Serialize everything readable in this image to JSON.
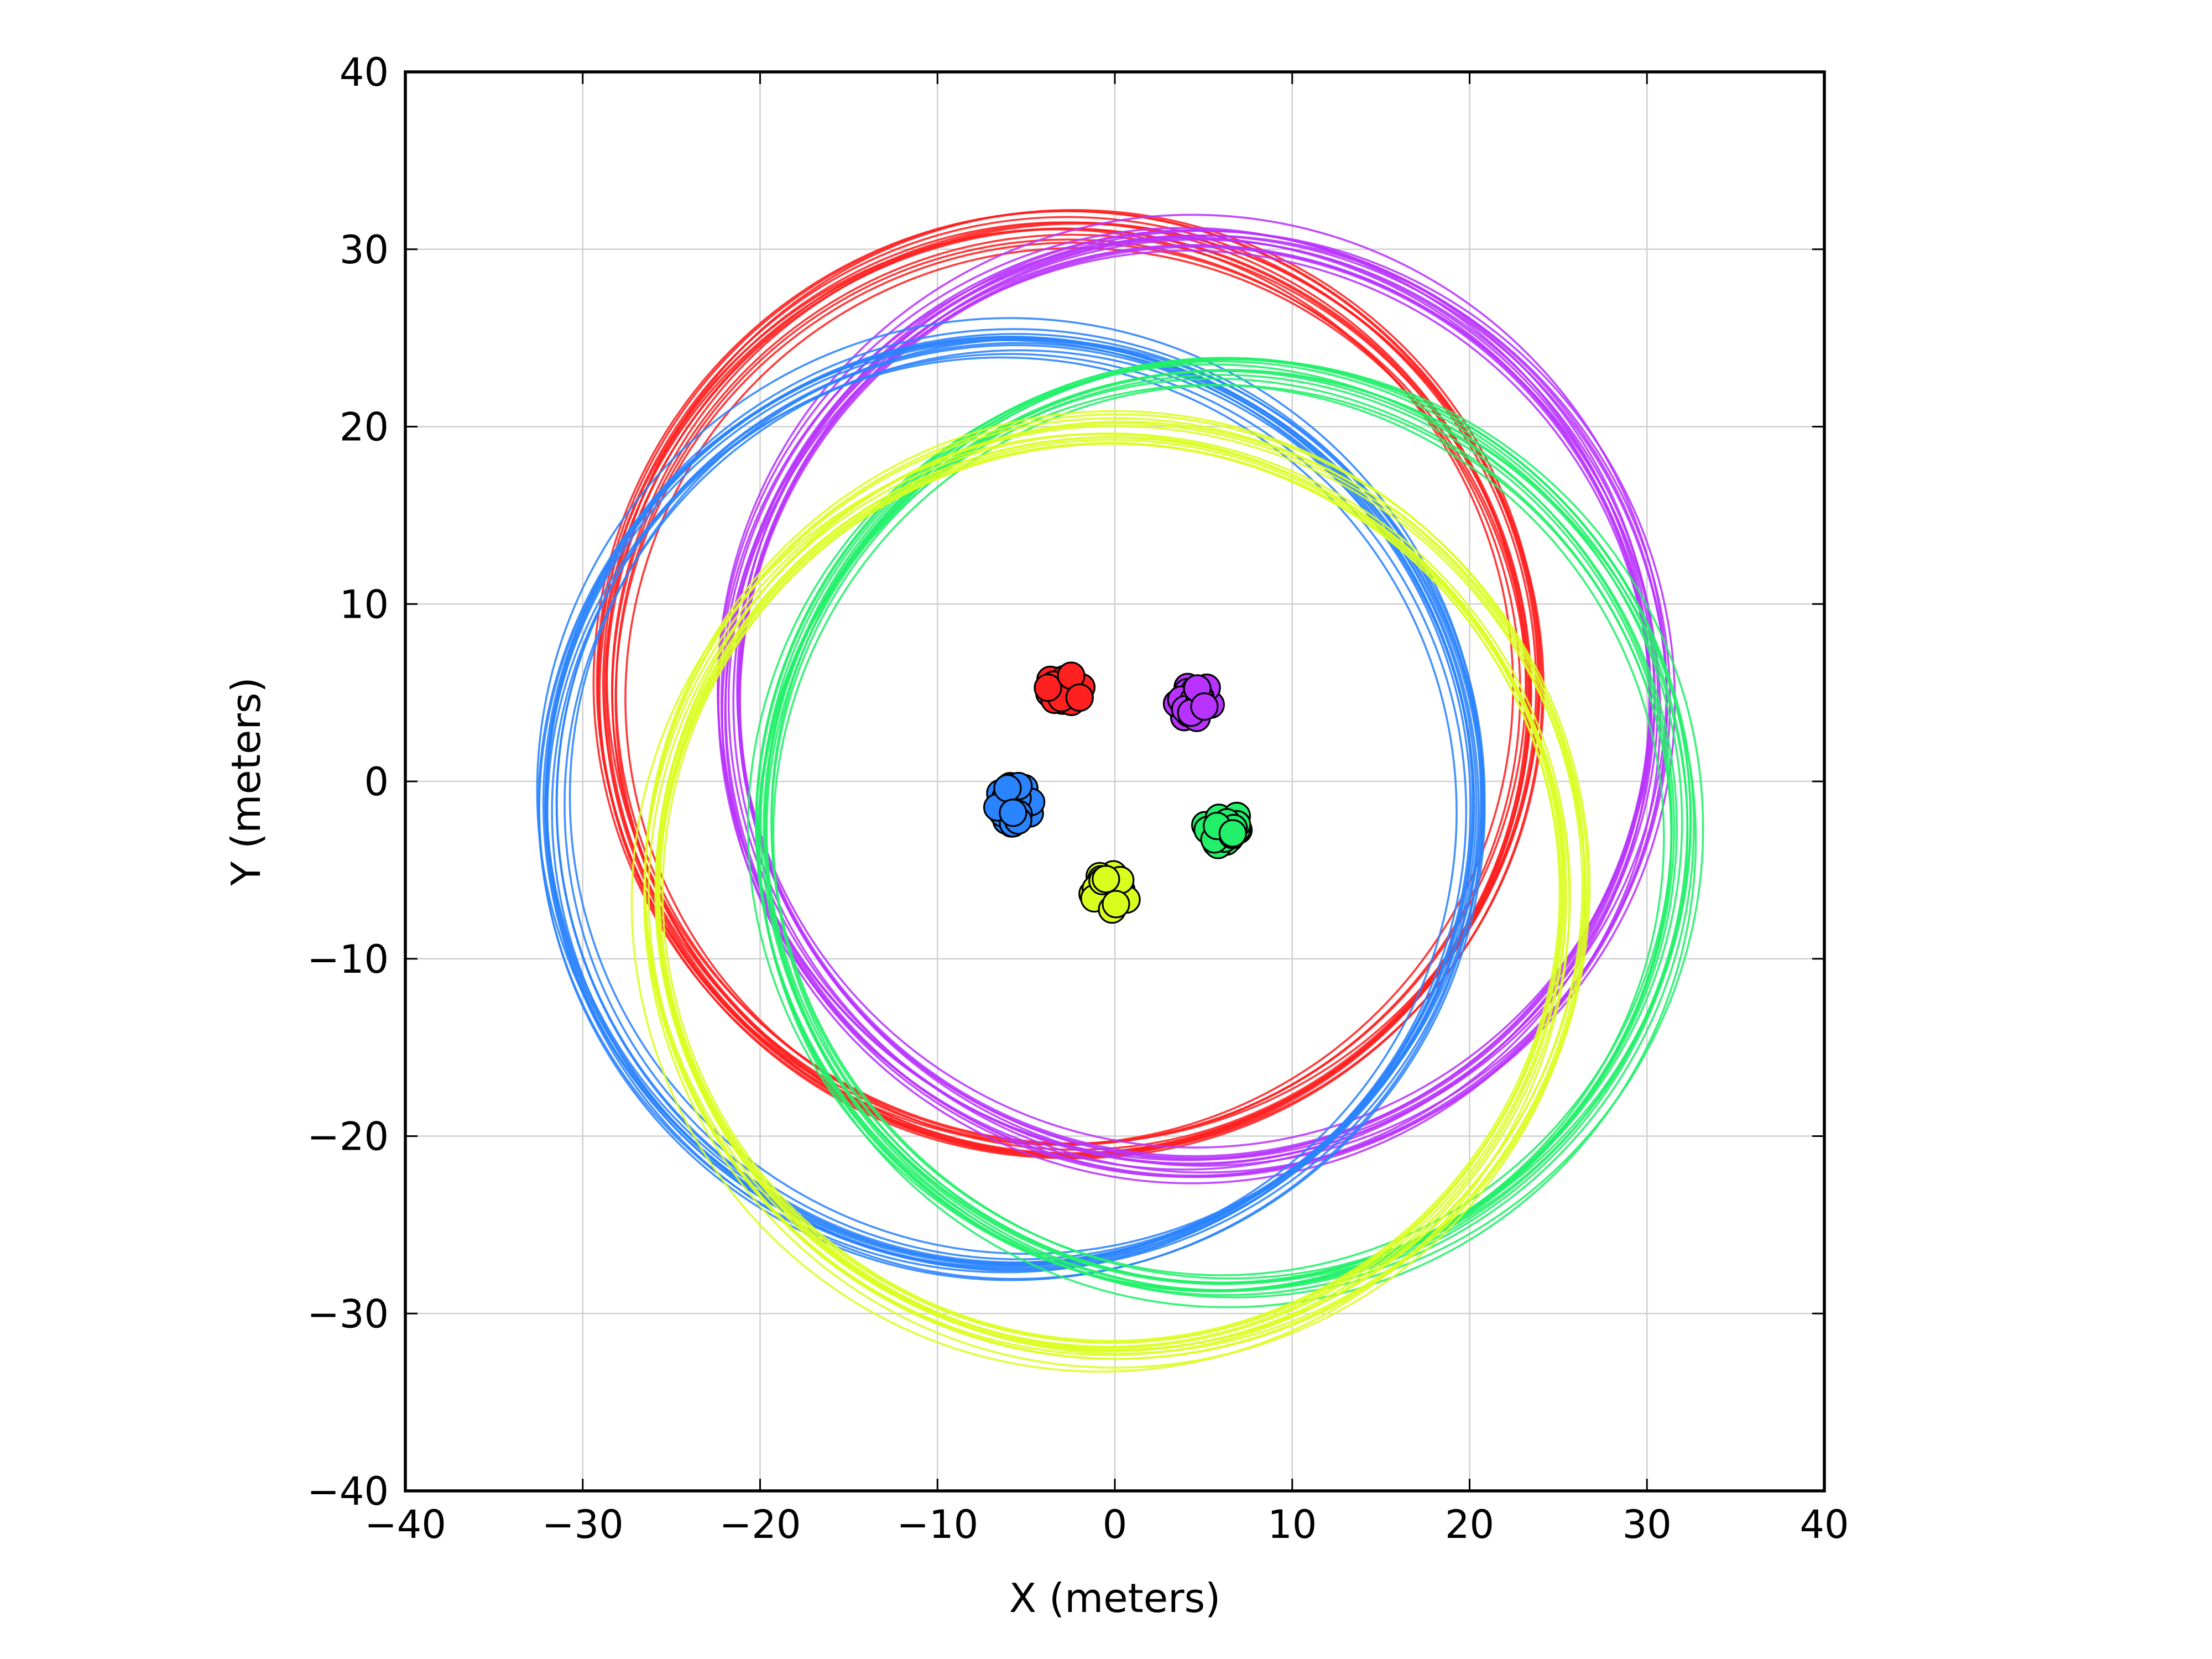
{
  "chart_data": {
    "type": "scatter",
    "title": "",
    "xlabel": "X (meters)",
    "ylabel": "Y (meters)",
    "xlim": [
      -40,
      40
    ],
    "ylim": [
      -40,
      40
    ],
    "xticks": [
      -40,
      -30,
      -20,
      -10,
      0,
      10,
      20,
      30,
      40
    ],
    "yticks": [
      -40,
      -30,
      -20,
      -10,
      0,
      10,
      20,
      30,
      40
    ],
    "xtick_labels": [
      "−40",
      "−30",
      "−20",
      "−10",
      "0",
      "10",
      "20",
      "30",
      "40"
    ],
    "ytick_labels": [
      "−40",
      "−30",
      "−20",
      "−10",
      "0",
      "10",
      "20",
      "30",
      "40"
    ],
    "grid": true,
    "series": [
      {
        "color": "#ff2020",
        "cluster_center": [
          -2.7,
          5.2
        ],
        "cluster_spread": 1.1,
        "ring_center": [
          -2.7,
          5.2
        ],
        "ring_radius": 26.0
      },
      {
        "color": "#b833ff",
        "cluster_center": [
          4.5,
          4.5
        ],
        "cluster_spread": 1.1,
        "ring_center": [
          4.5,
          4.5
        ],
        "ring_radius": 26.0
      },
      {
        "color": "#2a83ff",
        "cluster_center": [
          -5.6,
          -1.3
        ],
        "cluster_spread": 1.1,
        "ring_center": [
          -5.6,
          -1.3
        ],
        "ring_radius": 26.0
      },
      {
        "color": "#22f06a",
        "cluster_center": [
          6.0,
          -2.6
        ],
        "cluster_spread": 1.1,
        "ring_center": [
          6.0,
          -2.6
        ],
        "ring_radius": 26.0
      },
      {
        "color": "#d9ff1f",
        "cluster_center": [
          -0.2,
          -6.2
        ],
        "cluster_spread": 1.1,
        "ring_center": [
          -0.2,
          -6.2
        ],
        "ring_radius": 26.0
      }
    ]
  }
}
